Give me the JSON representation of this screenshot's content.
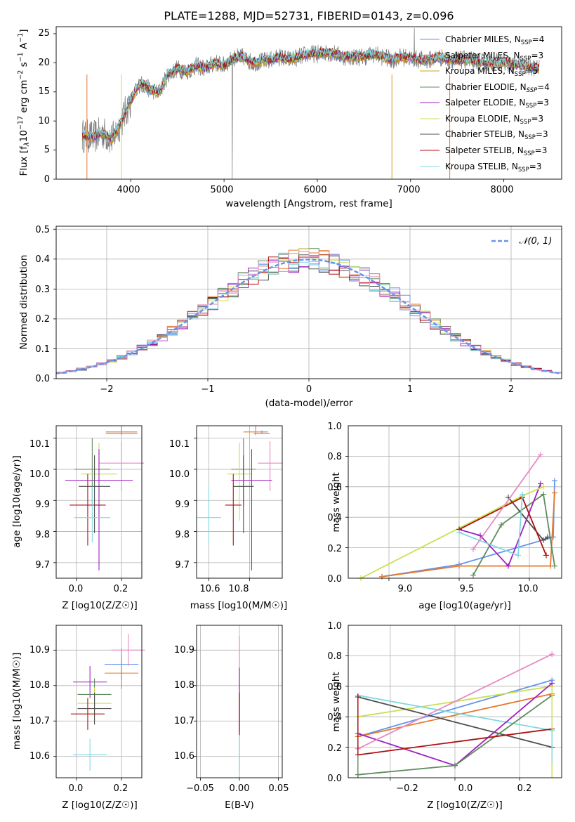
{
  "title": "PLATE=1288, MJD=52731, FIBERID=0143, z=0.096",
  "colors": {
    "Chabrier MILES": "#6495ED",
    "Salpeter MILES": "#E6782D",
    "Kroupa MILES": "#D4A017",
    "Chabrier ELODIE": "#5E8C5E",
    "Salpeter ELODIE": "#A020C0",
    "Kroupa ELODIE": "#C8E050",
    "Chabrier STELIB": "#505050",
    "Salpeter STELIB": "#B01010",
    "Kroupa STELIB": "#7FD8E0",
    "extra": "#E68AC0"
  },
  "spectrum_panel": {
    "xlabel": "wavelength [Angstrom, rest frame]",
    "ylabel_parts": {
      "a": "Flux [f",
      "b": "λ",
      "c": "10",
      "d": "−17",
      "e": " erg cm",
      "f": "−2",
      "g": " s",
      "h": "−1",
      "i": " A",
      "j": "−1",
      "k": "]"
    },
    "xticks": [
      "4000",
      "5000",
      "6000",
      "7000",
      "8000"
    ],
    "yticks": [
      "0",
      "5",
      "10",
      "15",
      "20",
      "25"
    ],
    "legend": [
      {
        "model": "Chabrier MILES",
        "nssp": "4"
      },
      {
        "model": "Salpeter MILES",
        "nssp": "3"
      },
      {
        "model": "Kroupa MILES",
        "nssp": "5"
      },
      {
        "model": "Chabrier ELODIE",
        "nssp": "4"
      },
      {
        "model": "Salpeter ELODIE",
        "nssp": "3"
      },
      {
        "model": "Kroupa ELODIE",
        "nssp": "3"
      },
      {
        "model": "Chabrier STELIB",
        "nssp": "3"
      },
      {
        "model": "Salpeter STELIB",
        "nssp": "3"
      },
      {
        "model": "Kroupa STELIB",
        "nssp": "3"
      }
    ]
  },
  "hist_panel": {
    "xlabel": "(data-model)/error",
    "ylabel": "Normed distribution",
    "xticks": [
      "−2",
      "−1",
      "0",
      "1",
      "2"
    ],
    "yticks": [
      "0.0",
      "0.1",
      "0.2",
      "0.3",
      "0.4",
      "0.5"
    ],
    "legend_label": "𝒩(0, 1)"
  },
  "small_panels": {
    "age_z": {
      "xlabel": "Z [log10(Z/Z☉)]",
      "ylabel": "age  [log10(age/yr)]",
      "xticks": [
        "0.0",
        "0.2"
      ],
      "yticks": [
        "9.7",
        "9.8",
        "9.9",
        "10.0",
        "10.1"
      ]
    },
    "age_mass": {
      "xlabel": "mass [log10(M/M☉)]",
      "xticks": [
        "10.6",
        "10.8"
      ],
      "yticks": [
        "9.7",
        "9.8",
        "9.9",
        "10.0",
        "10.1"
      ]
    },
    "mass_z": {
      "xlabel": "Z [log10(Z/Z☉)]",
      "ylabel": "mass [log10(M/M☉)]",
      "xticks": [
        "0.0",
        "0.2"
      ],
      "yticks": [
        "10.6",
        "10.7",
        "10.8",
        "10.9"
      ]
    },
    "mass_ebv": {
      "xlabel": "E(B-V)",
      "xticks": [
        "−0.05",
        "0.00",
        "0.05"
      ],
      "yticks": [
        "10.6",
        "10.7",
        "10.8",
        "10.9"
      ]
    },
    "weight_age": {
      "xlabel": "age  [log10(age/yr)]",
      "ylabel": "mass weight",
      "xticks": [
        "9.0",
        "9.5",
        "10.0"
      ],
      "yticks": [
        "0.0",
        "0.2",
        "0.4",
        "0.6",
        "0.8",
        "1.0"
      ]
    },
    "weight_z": {
      "xlabel": "Z [log10(Z/Z☉)]",
      "ylabel": "mass weight",
      "xticks": [
        "−0.2",
        "0.0",
        "0.2"
      ],
      "yticks": [
        "0.0",
        "0.2",
        "0.4",
        "0.6",
        "0.8",
        "1.0"
      ]
    }
  },
  "chart_data": [
    {
      "type": "line",
      "title": "PLATE=1288, MJD=52731, FIBERID=0143, z=0.096",
      "xlabel": "wavelength [Angstrom, rest frame]",
      "ylabel": "Flux [fλ10^-17 erg cm^-2 s^-1 A^-1]",
      "xlim": [
        3200,
        8620
      ],
      "ylim": [
        0,
        26.2
      ],
      "data_x": [
        3480,
        3600,
        3700,
        3800,
        3900,
        4000,
        4100,
        4200,
        4300,
        4400,
        4500,
        4600,
        4700,
        4800,
        4900,
        5000,
        5100,
        5200,
        5300,
        5400,
        5500,
        5600,
        5700,
        5800,
        5900,
        6000,
        6100,
        6200,
        6300,
        6400,
        6500,
        6600,
        6700,
        6800,
        6900,
        7000,
        7100,
        7200,
        7300,
        7400,
        7600,
        7800,
        8000,
        8200,
        8380
      ],
      "data_y": [
        7.5,
        7.2,
        8.0,
        6.8,
        10.0,
        13.5,
        16.5,
        15.5,
        14.8,
        18.0,
        19.0,
        18.5,
        19.5,
        19.0,
        20.0,
        19.5,
        20.8,
        21.0,
        20.0,
        20.2,
        20.5,
        21.0,
        20.5,
        21.0,
        21.5,
        21.5,
        21.8,
        21.5,
        21.0,
        21.0,
        21.0,
        21.5,
        21.0,
        20.5,
        21.0,
        20.8,
        20.5,
        20.5,
        21.0,
        20.5,
        20.5,
        20.0,
        20.0,
        19.5,
        19.0
      ],
      "series": [
        {
          "name": "Chabrier MILES, N_SSP=4"
        },
        {
          "name": "Salpeter MILES, N_SSP=3"
        },
        {
          "name": "Kroupa MILES, N_SSP=5"
        },
        {
          "name": "Chabrier ELODIE, N_SSP=4"
        },
        {
          "name": "Salpeter ELODIE, N_SSP=3"
        },
        {
          "name": "Kroupa ELODIE, N_SSP=3"
        },
        {
          "name": "Chabrier STELIB, N_SSP=3"
        },
        {
          "name": "Salpeter STELIB, N_SSP=3"
        },
        {
          "name": "Kroupa STELIB, N_SSP=3"
        }
      ],
      "legend": "top-right"
    },
    {
      "type": "histogram",
      "xlabel": "(data-model)/error",
      "ylabel": "Normed distribution",
      "xlim": [
        -2.5,
        2.5
      ],
      "ylim": [
        0,
        0.51
      ],
      "bin_width": 0.1,
      "reference_curve": "N(0,1)",
      "series": [
        {
          "name": "Chabrier MILES",
          "peak": 0.44
        },
        {
          "name": "Salpeter MILES",
          "peak": 0.46
        },
        {
          "name": "Chabrier STELIB",
          "peak": 0.47
        },
        {
          "name": "Kroupa STELIB",
          "peak": 0.48
        }
      ],
      "legend": "top-right"
    },
    {
      "type": "scatter",
      "xlabel": "Z [log10(Z/Z☉)]",
      "ylabel": "age  [log10(age/yr)]",
      "xlim": [
        -0.09,
        0.29
      ],
      "ylim": [
        9.65,
        10.14
      ],
      "points": [
        {
          "series": "Chabrier MILES",
          "x": 0.2,
          "y": 10.115,
          "xerr": 0.07,
          "yerr_lo": 0.0,
          "yerr_hi": 0.01
        },
        {
          "series": "Salpeter MILES",
          "x": 0.2,
          "y": 10.12,
          "xerr": 0.07,
          "yerr_lo": 0.01,
          "yerr_hi": 0.02
        },
        {
          "series": "extra",
          "x": 0.2,
          "y": 10.02,
          "xerr": 0.1,
          "yerr_lo": 0.09,
          "yerr_hi": 0.07
        },
        {
          "series": "Chabrier ELODIE",
          "x": 0.07,
          "y": 10.0,
          "xerr": 0.08,
          "yerr_lo": 0.12,
          "yerr_hi": 0.1
        },
        {
          "series": "Kroupa ELODIE",
          "x": 0.1,
          "y": 9.985,
          "xerr": 0.08,
          "yerr_lo": 0.15,
          "yerr_hi": 0.1
        },
        {
          "series": "Salpeter ELODIE",
          "x": 0.1,
          "y": 9.965,
          "xerr": 0.15,
          "yerr_lo": 0.29,
          "yerr_hi": 0.1
        },
        {
          "series": "Chabrier STELIB",
          "x": 0.08,
          "y": 9.945,
          "xerr": 0.07,
          "yerr_lo": 0.15,
          "yerr_hi": 0.1
        },
        {
          "series": "Salpeter STELIB",
          "x": 0.05,
          "y": 9.885,
          "xerr": 0.08,
          "yerr_lo": 0.13,
          "yerr_hi": 0.1
        },
        {
          "series": "Kroupa STELIB",
          "x": 0.07,
          "y": 9.845,
          "xerr": 0.08,
          "yerr_lo": 0.08,
          "yerr_hi": 0.1
        }
      ]
    },
    {
      "type": "scatter",
      "xlabel": "mass [log10(M/M☉)]",
      "ylabel": "",
      "xlim": [
        10.54,
        10.96
      ],
      "ylim": [
        9.65,
        10.14
      ],
      "points": [
        {
          "series": "Chabrier MILES",
          "x": 10.86,
          "y": 10.115,
          "xerr": 0.04
        },
        {
          "series": "Salpeter MILES",
          "x": 10.83,
          "y": 10.12,
          "xerr": 0.06
        },
        {
          "series": "extra",
          "x": 10.9,
          "y": 10.02,
          "xerr": 0.06
        },
        {
          "series": "Chabrier ELODIE",
          "x": 10.77,
          "y": 10.0,
          "xerr": 0.06
        },
        {
          "series": "Kroupa ELODIE",
          "x": 10.75,
          "y": 9.985,
          "xerr": 0.06
        },
        {
          "series": "Salpeter ELODIE",
          "x": 10.81,
          "y": 9.965,
          "xerr": 0.1
        },
        {
          "series": "Chabrier STELIB",
          "x": 10.77,
          "y": 9.945,
          "xerr": 0.05
        },
        {
          "series": "Salpeter STELIB",
          "x": 10.72,
          "y": 9.885,
          "xerr": 0.04
        },
        {
          "series": "Kroupa STELIB",
          "x": 10.6,
          "y": 9.845,
          "xerr": 0.06
        }
      ]
    },
    {
      "type": "line",
      "xlabel": "age  [log10(age/yr)]",
      "ylabel": "mass weight",
      "xlim": [
        8.71,
        10.23
      ],
      "ylim": [
        0,
        1.0
      ],
      "series": [
        {
          "name": "Chabrier MILES",
          "x": [
            8.95,
            9.5,
            10.17,
            10.18
          ],
          "y": [
            0.01,
            0.09,
            0.27,
            0.64
          ]
        },
        {
          "name": "Salpeter MILES",
          "x": [
            8.95,
            9.5,
            10.15,
            10.18
          ],
          "y": [
            0.01,
            0.08,
            0.08,
            0.56
          ]
        },
        {
          "name": "Chabrier ELODIE",
          "x": [
            9.6,
            9.8,
            10.1,
            10.18
          ],
          "y": [
            0.02,
            0.35,
            0.55,
            0.08
          ]
        },
        {
          "name": "Salpeter ELODIE",
          "x": [
            9.5,
            9.65,
            9.85,
            10.08
          ],
          "y": [
            0.32,
            0.28,
            0.08,
            0.62
          ]
        },
        {
          "name": "Kroupa ELODIE",
          "x": [
            8.8,
            9.95,
            10.1
          ],
          "y": [
            0.0,
            0.54,
            0.6
          ]
        },
        {
          "name": "Chabrier STELIB",
          "x": [
            9.85,
            10.1,
            10.13
          ],
          "y": [
            0.53,
            0.25,
            0.27
          ]
        },
        {
          "name": "Salpeter STELIB",
          "x": [
            9.5,
            9.95,
            10.12
          ],
          "y": [
            0.32,
            0.53,
            0.15
          ]
        },
        {
          "name": "Kroupa STELIB",
          "x": [
            9.5,
            9.92,
            9.95
          ],
          "y": [
            0.3,
            0.15,
            0.55
          ]
        },
        {
          "name": "extra",
          "x": [
            9.6,
            10.08
          ],
          "y": [
            0.19,
            0.81
          ]
        }
      ]
    },
    {
      "type": "scatter",
      "xlabel": "Z [log10(Z/Z☉)]",
      "ylabel": "mass [log10(M/M☉)]",
      "xlim": [
        -0.09,
        0.29
      ],
      "ylim": [
        10.54,
        10.97
      ],
      "points": [
        {
          "series": "Chabrier MILES",
          "x": 0.2,
          "y": 10.86
        },
        {
          "series": "Salpeter MILES",
          "x": 0.2,
          "y": 10.835
        },
        {
          "series": "extra",
          "x": 0.23,
          "y": 10.9
        },
        {
          "series": "Salpeter ELODIE",
          "x": 0.06,
          "y": 10.81
        },
        {
          "series": "Chabrier ELODIE",
          "x": 0.08,
          "y": 10.775
        },
        {
          "series": "Kroupa ELODIE",
          "x": 0.08,
          "y": 10.75
        },
        {
          "series": "Chabrier STELIB",
          "x": 0.08,
          "y": 10.735
        },
        {
          "series": "Salpeter STELIB",
          "x": 0.05,
          "y": 10.72
        },
        {
          "series": "Kroupa STELIB",
          "x": 0.06,
          "y": 10.605
        }
      ]
    },
    {
      "type": "scatter",
      "xlabel": "E(B-V)",
      "ylabel": "",
      "xlim": [
        -0.055,
        0.055
      ],
      "ylim": [
        10.54,
        10.97
      ],
      "points": [
        {
          "series": "all models",
          "x": 0.0,
          "y": 10.75
        }
      ]
    },
    {
      "type": "line",
      "xlabel": "Z [log10(Z/Z☉)]",
      "ylabel": "mass weight",
      "xlim": [
        -0.33,
        0.33
      ],
      "ylim": [
        0,
        1.0
      ],
      "series": [
        {
          "name": "Chabrier MILES",
          "x": [
            -0.3,
            0.3
          ],
          "y": [
            0.27,
            0.64
          ]
        },
        {
          "name": "Salpeter MILES",
          "x": [
            -0.3,
            0.3
          ],
          "y": [
            0.27,
            0.55
          ]
        },
        {
          "name": "Kroupa ELODIE",
          "x": [
            -0.3,
            0.3
          ],
          "y": [
            0.4,
            0.6
          ]
        },
        {
          "name": "Kroupa STELIB",
          "x": [
            -0.3,
            0.3
          ],
          "y": [
            0.54,
            0.31
          ]
        },
        {
          "name": "Chabrier STELIB",
          "x": [
            -0.3,
            0.3
          ],
          "y": [
            0.53,
            0.2
          ]
        },
        {
          "name": "Salpeter ELODIE",
          "x": [
            -0.3,
            0.0,
            0.3
          ],
          "y": [
            0.29,
            0.08,
            0.62
          ]
        },
        {
          "name": "Chabrier ELODIE",
          "x": [
            -0.3,
            0.0,
            0.3
          ],
          "y": [
            0.02,
            0.08,
            0.54
          ]
        },
        {
          "name": "Salpeter STELIB",
          "x": [
            -0.3,
            0.3
          ],
          "y": [
            0.15,
            0.32
          ]
        },
        {
          "name": "extra",
          "x": [
            -0.3,
            0.3
          ],
          "y": [
            0.19,
            0.81
          ]
        }
      ]
    }
  ]
}
